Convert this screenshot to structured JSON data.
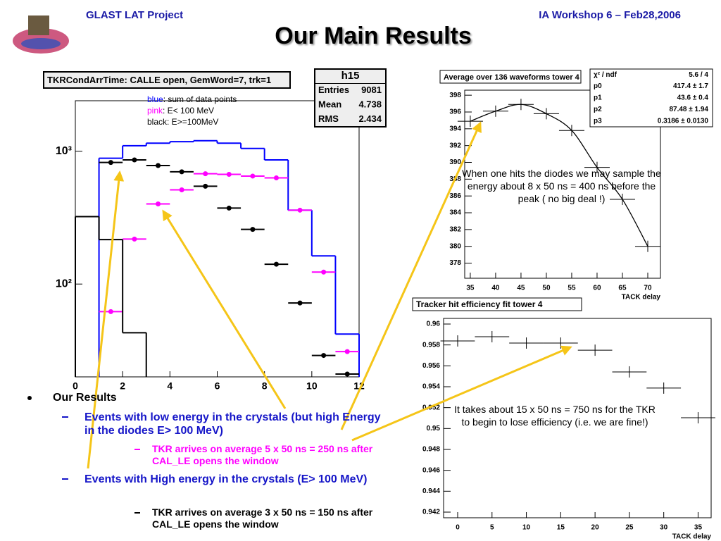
{
  "slide": {
    "header_left": "GLAST LAT Project",
    "header_right": "IA Workshop 6 –  Feb28,2006",
    "title": "Our Main Results",
    "bullets": [
      "Our Results",
      "Events with low energy in the crystals (but high Energy in the diodes E> 100 MeV)",
      "TKR arrives on average 5 x 50 ns = 250 ns after CAL_LE opens the window",
      "Events with High energy in the crystals (E> 100 MeV)",
      "TKR arrives on average 3 x 50 ns = 150 ns after CAL_LE opens the window"
    ]
  },
  "chart_data": [
    {
      "type": "histogram",
      "title": "TKRCondArrTime: CALLE open, GemWord=7, trk=1",
      "log_y": true,
      "xlim": [
        0,
        12
      ],
      "ylim": [
        20,
        2400
      ],
      "xticks": [
        0,
        2,
        4,
        6,
        8,
        10,
        12
      ],
      "yticks": [
        {
          "value": 100,
          "label": "10²"
        },
        {
          "value": 1000,
          "label": "10³"
        }
      ],
      "stats": {
        "name": "h15",
        "rows": [
          [
            "Entries",
            9081
          ],
          [
            "Mean",
            4.738
          ],
          [
            "RMS",
            2.434
          ]
        ]
      },
      "series": [
        {
          "name": "blue",
          "description": ": sum of data points",
          "color": "#0000ff",
          "style": "step",
          "bins": [
            1,
            2,
            3,
            4,
            5,
            6,
            7,
            8,
            9,
            10,
            11,
            12
          ],
          "values": [
            885,
            1100,
            1150,
            1180,
            1200,
            1150,
            1050,
            860,
            360,
            163,
            42
          ]
        },
        {
          "name": "pink",
          "description": ": E< 100 MeV",
          "color": "#ff00ff",
          "style": "points",
          "x": [
            1.5,
            2.5,
            3.5,
            4.5,
            5.5,
            6.5,
            7.5,
            8.5,
            9.5,
            10.5,
            11.5
          ],
          "values": [
            62,
            218,
            401,
            512,
            677,
            670,
            650,
            630,
            360,
            123,
            31
          ]
        },
        {
          "name": "black",
          "description": ": E>=100MeV",
          "color": "#000000",
          "style": "points",
          "x": [
            1.5,
            2.5,
            3.5,
            4.5,
            5.5,
            6.5,
            7.5,
            8.5,
            9.5,
            10.5,
            11.5
          ],
          "values": [
            823,
            860,
            780,
            700,
            545,
            373,
            258,
            141,
            72,
            29,
            21
          ]
        },
        {
          "color": "#000000",
          "style": "step",
          "bins": [
            0,
            1,
            2,
            3
          ],
          "values": [
            322,
            216,
            43
          ]
        }
      ]
    },
    {
      "type": "scatter",
      "title": "Average over 136 waveforms tower 4",
      "x_label": "TACK delay",
      "fit": true,
      "xlim": [
        33.9,
        72.5
      ],
      "ylim": [
        376.2,
        398.6
      ],
      "xticks": [
        35,
        40,
        45,
        50,
        55,
        60,
        65,
        70
      ],
      "yticks": [
        378,
        380,
        382,
        384,
        386,
        388,
        390,
        392,
        394,
        396,
        398
      ],
      "stats": {
        "rows": [
          [
            "χ² / ndf",
            "5.6 / 4"
          ],
          [
            "p0",
            "417.4 ± 1.7"
          ],
          [
            "p1",
            "43.6 ± 0.4"
          ],
          [
            "p2",
            "87.48 ± 1.94"
          ],
          [
            "p3",
            "0.3186 ± 0.0130"
          ]
        ]
      },
      "annotation": "When one hits the diodes we may sample the energy about 8 x 50 ns = 400 ns before the peak ( no big deal !)",
      "series": [
        {
          "color": "#000000",
          "style": "cross",
          "x": [
            35,
            40,
            45,
            50,
            55,
            60,
            65,
            70
          ],
          "values": [
            394.9,
            396.1,
            396.9,
            395.8,
            393.8,
            389.4,
            385.6,
            380.0
          ]
        }
      ]
    },
    {
      "type": "scatter",
      "title": "Tracker hit efficiency fit tower 4",
      "x_label": "TACK delay",
      "xlim": [
        -2.05,
        36.9
      ],
      "ylim": [
        0.94146,
        0.96054
      ],
      "xticks": [
        0,
        5,
        10,
        15,
        20,
        25,
        30,
        35
      ],
      "yticks": [
        0.942,
        0.944,
        0.946,
        0.948,
        0.95,
        0.952,
        0.954,
        0.956,
        0.958,
        0.96
      ],
      "annotation": "It takes about 15 x 50 ns = 750 ns for the TKR to begin to lose efficiency (i.e. we are fine!)",
      "series": [
        {
          "color": "#000000",
          "style": "cross",
          "x": [
            0,
            5,
            10,
            15,
            20,
            25,
            30,
            35
          ],
          "values": [
            0.95838,
            0.95879,
            0.95818,
            0.95818,
            0.9575,
            0.95542,
            0.95387,
            0.95103
          ]
        }
      ]
    }
  ]
}
